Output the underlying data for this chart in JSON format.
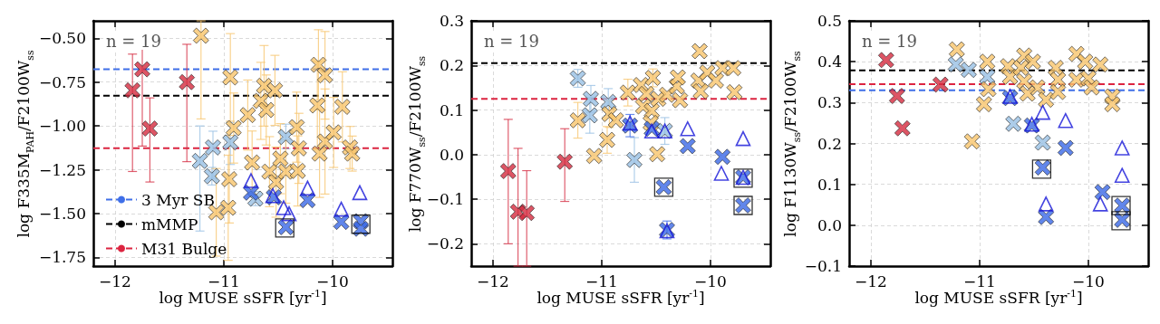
{
  "chart_data": [
    {
      "type": "scatter",
      "xlabel": "log MUSE sSFR [yr$^{-1}$]",
      "ylabel": "log F335M$_{PAH}$/F2100W$_{ss}$",
      "xlim": [
        -12.2,
        -9.45
      ],
      "xticks": [
        {
          "value": -12,
          "label": "−12"
        },
        {
          "value": -11,
          "label": "−11"
        },
        {
          "value": -10,
          "label": "−10"
        }
      ],
      "ylim": [
        -1.8,
        -0.4
      ],
      "yticks": [
        {
          "value": -1.75,
          "label": "−1.75"
        },
        {
          "value": -1.5,
          "label": "−1.50"
        },
        {
          "value": -1.25,
          "label": "−1.25"
        },
        {
          "value": -1,
          "label": "−1.00"
        },
        {
          "value": -0.75,
          "label": "−0.75"
        },
        {
          "value": -0.5,
          "label": "−0.50"
        }
      ],
      "grid": true,
      "legend": "bottom left",
      "annotations": [
        "n = 19"
      ],
      "ref_lines": [
        {
          "axis": "y",
          "value": -0.677,
          "label": "3 Myr SB",
          "color": "#3f6fe8",
          "line_style": "dashed"
        },
        {
          "axis": "y",
          "value": -0.828,
          "label": "mMMP",
          "color": "#000000",
          "line_style": "dashed"
        },
        {
          "axis": "y",
          "value": -1.127,
          "label": "M31 Bulge",
          "color": "#dc2440",
          "line_style": "dashed"
        }
      ],
      "series": [
        {
          "marker": "cross",
          "color": "#d42a3f",
          "x": [
            -11.84,
            -11.75,
            -11.68,
            -11.34
          ],
          "values": [
            -0.797,
            -0.677,
            -1.015,
            -0.75
          ],
          "errors": [
            [
              -1.26,
              -0.59
            ],
            [
              -1.115,
              -0.465
            ],
            [
              -1.32,
              -0.84
            ],
            [
              -1.204,
              -0.534
            ]
          ]
        },
        {
          "marker": "cross",
          "color": "#97bfe3",
          "x": [
            -11.22,
            -11.1,
            -11.11,
            -10.94,
            -10.43,
            -10.71
          ],
          "values": [
            -1.2,
            -1.123,
            -1.287,
            -1.094,
            -1.063,
            -1.415
          ],
          "errors": [
            [
              -1.6,
              -1.0
            ],
            [
              -1.3,
              -1.03
            ],
            0.05,
            [
              -1.22,
              -0.98
            ],
            [
              -1.13,
              -0.99
            ],
            0.04
          ]
        },
        {
          "marker": "cross",
          "color": "#f7c46c",
          "x": [
            -11.21,
            -10.94,
            -10.91,
            -10.78,
            -10.63,
            -10.53,
            -10.66,
            -10.61,
            -10.74,
            -10.95,
            -11.07,
            -10.96,
            -10.58,
            -10.52,
            -10.48,
            -10.43,
            -10.33,
            -10.31,
            -10.32,
            -10.13,
            -10.07,
            -10.14,
            -10.12,
            -10.07,
            -9.99,
            -9.91,
            -9.84,
            -9.82
          ],
          "values": [
            -0.485,
            -0.723,
            -1.012,
            -0.938,
            -0.771,
            -0.797,
            -0.857,
            -0.909,
            -1.209,
            -1.304,
            -1.493,
            -1.467,
            -1.261,
            -1.321,
            -1.187,
            -1.261,
            -1.007,
            -1.128,
            -1.257,
            -0.651,
            -0.711,
            -0.883,
            -1.158,
            -1.089,
            -1.037,
            -0.891,
            -1.123,
            -1.158
          ],
          "errors": [
            [
              -0.96,
              -0.4
            ],
            0.25,
            0.2,
            0.2,
            0.23,
            0.2,
            0.22,
            0.2,
            0.18,
            0.25,
            0.25,
            0.3,
            0.2,
            0.2,
            0.2,
            0.18,
            0.2,
            0.2,
            0.2,
            0.2,
            0.25,
            0.25,
            0.25,
            0.3,
            0.2,
            0.2,
            0.12,
            0.1
          ]
        },
        {
          "marker": "cross",
          "color": "#3a68e6",
          "x": [
            -10.75,
            -10.54,
            -10.43,
            -10.23,
            -9.92,
            -9.74,
            -9.74
          ],
          "values": [
            -1.381,
            -1.407,
            -1.578,
            -1.424,
            -1.548,
            -1.544,
            -1.587
          ]
        },
        {
          "marker": "triangle",
          "color": "#1414d8",
          "x": [
            -10.75,
            -10.55,
            -10.45,
            -10.4,
            -10.23,
            -9.92,
            -9.75
          ],
          "values": [
            -1.312,
            -1.398,
            -1.467,
            -1.501,
            -1.355,
            -1.475,
            -1.381
          ]
        },
        {
          "marker": "square",
          "color": "#000000",
          "x": [
            -10.44,
            -9.74
          ],
          "values": [
            -1.582,
            -1.561
          ]
        }
      ]
    },
    {
      "type": "scatter",
      "xlabel": "log MUSE sSFR [yr$^{-1}$]",
      "ylabel": "log F770W$_{ss}$/F2100W$_{ss}$",
      "xlim": [
        -12.2,
        -9.45
      ],
      "xticks": [
        {
          "value": -12,
          "label": "−12"
        },
        {
          "value": -11,
          "label": "−11"
        },
        {
          "value": -10,
          "label": "−10"
        }
      ],
      "ylim": [
        -0.25,
        0.3
      ],
      "yticks": [
        {
          "value": -0.2,
          "label": "−0.2"
        },
        {
          "value": -0.1,
          "label": "−0.1"
        },
        {
          "value": 0,
          "label": "0.0"
        },
        {
          "value": 0.1,
          "label": "0.1"
        },
        {
          "value": 0.2,
          "label": "0.2"
        },
        {
          "value": 0.3,
          "label": "0.3"
        }
      ],
      "grid": true,
      "annotations": [
        "n = 19"
      ],
      "ref_lines": [
        {
          "axis": "y",
          "value": 0.205,
          "color": "#000000",
          "line_style": "dashed"
        },
        {
          "axis": "y",
          "value": 0.125,
          "color": "#dc2440",
          "line_style": "dashed"
        }
      ],
      "series": [
        {
          "marker": "cross",
          "color": "#d42a3f",
          "x": [
            -11.86,
            -11.77,
            -11.69,
            -11.34
          ],
          "values": [
            -0.037,
            -0.128,
            -0.131,
            -0.016
          ],
          "errors": [
            [
              -0.2,
              0.079
            ],
            [
              -0.25,
              0.014
            ],
            [
              -0.25,
              -0.036
            ],
            [
              -0.105,
              0.058
            ]
          ]
        },
        {
          "marker": "cross",
          "color": "#97bfe3",
          "x": [
            -11.22,
            -11.1,
            -11.11,
            -10.94,
            -10.7,
            -10.42
          ],
          "values": [
            0.171,
            0.125,
            0.088,
            0.118,
            -0.012,
            0.053
          ],
          "errors": [
            0.02,
            0.03,
            0.04,
            0.03,
            0.05,
            0.03
          ]
        },
        {
          "marker": "cross",
          "color": "#f7c46c",
          "x": [
            -11.22,
            -11.07,
            -10.95,
            -10.93,
            -10.87,
            -10.76,
            -10.64,
            -10.59,
            -10.53,
            -10.62,
            -10.54,
            -10.48,
            -10.4,
            -10.31,
            -10.3,
            -10.28,
            -10.49,
            -10.55,
            -10.1,
            -10.11,
            -10.09,
            -10.03,
            -9.95,
            -9.89,
            -9.79,
            -9.78
          ],
          "values": [
            0.077,
            -0.003,
            0.033,
            0.091,
            0.077,
            0.139,
            0.156,
            0.136,
            0.172,
            0.108,
            0.098,
            0.125,
            0.134,
            0.153,
            0.173,
            0.122,
            0.001,
            0.071,
            0.232,
            0.166,
            0.142,
            0.184,
            0.166,
            0.194,
            0.194,
            0.14
          ],
          "errors": [
            0.04,
            null,
            0.03,
            0.03,
            null,
            0.03,
            null,
            null,
            0.02,
            null,
            null,
            null,
            null,
            null,
            null,
            null,
            null,
            null,
            null,
            null,
            null,
            null,
            null,
            null,
            null,
            null
          ]
        },
        {
          "marker": "cross",
          "color": "#3a68e6",
          "x": [
            -10.74,
            -10.54,
            -10.43,
            -10.4,
            -10.21,
            -9.89,
            -9.7,
            -9.7
          ],
          "values": [
            0.065,
            0.058,
            -0.073,
            -0.169,
            0.019,
            -0.005,
            -0.051,
            -0.114
          ],
          "errors": [
            0.025,
            null,
            null,
            0.02,
            null,
            null,
            null,
            null
          ]
        },
        {
          "marker": "triangle",
          "color": "#1414d8",
          "x": [
            -10.74,
            -10.54,
            -10.42,
            -10.4,
            -10.21,
            -9.9,
            -9.7,
            -9.7
          ],
          "values": [
            0.071,
            0.053,
            0.053,
            -0.171,
            0.058,
            -0.042,
            0.036,
            -0.051
          ]
        },
        {
          "marker": "square",
          "color": "#000000",
          "x": [
            -10.43,
            -9.7,
            -9.7
          ],
          "values": [
            -0.073,
            -0.053,
            -0.114
          ]
        }
      ]
    },
    {
      "type": "scatter",
      "xlabel": "log MUSE sSFR [yr$^{-1}$]",
      "ylabel": "log F1130W$_{ss}$/F2100W$_{ss}$",
      "xlim": [
        -12.2,
        -9.45
      ],
      "xticks": [
        {
          "value": -12,
          "label": "−12"
        },
        {
          "value": -11,
          "label": "−11"
        },
        {
          "value": -10,
          "label": "−10"
        }
      ],
      "ylim": [
        -0.1,
        0.5
      ],
      "yticks": [
        {
          "value": -0.1,
          "label": "−0.1"
        },
        {
          "value": 0,
          "label": "0.0"
        },
        {
          "value": 0.1,
          "label": "0.1"
        },
        {
          "value": 0.2,
          "label": "0.2"
        },
        {
          "value": 0.3,
          "label": "0.3"
        },
        {
          "value": 0.4,
          "label": "0.4"
        },
        {
          "value": 0.5,
          "label": "0.5"
        }
      ],
      "grid": true,
      "annotations": [
        "n = 19"
      ],
      "ref_lines": [
        {
          "axis": "y",
          "value": 0.33,
          "color": "#3f6fe8",
          "line_style": "dashed"
        },
        {
          "axis": "y",
          "value": 0.379,
          "color": "#000000",
          "line_style": "dashed"
        },
        {
          "axis": "y",
          "value": 0.345,
          "color": "#dc2440",
          "line_style": "dashed"
        }
      ],
      "series": [
        {
          "marker": "cross",
          "color": "#d42a3f",
          "x": [
            -11.86,
            -11.76,
            -11.71,
            -11.36
          ],
          "values": [
            0.404,
            0.316,
            0.237,
            0.344
          ]
        },
        {
          "marker": "cross",
          "color": "#97bfe3",
          "x": [
            -11.22,
            -11.1,
            -10.93,
            -10.69,
            -10.42
          ],
          "values": [
            0.393,
            0.38,
            0.363,
            0.248,
            0.202
          ]
        },
        {
          "marker": "cross",
          "color": "#f7c46c",
          "x": [
            -11.21,
            -11.07,
            -10.93,
            -10.92,
            -10.96,
            -10.74,
            -10.72,
            -10.59,
            -10.62,
            -10.59,
            -10.51,
            -10.47,
            -10.56,
            -10.39,
            -10.3,
            -10.28,
            -10.28,
            -10.11,
            -10.08,
            -10.03,
            -10.11,
            -10.0,
            -9.97,
            -9.89,
            -9.78,
            -9.78
          ],
          "values": [
            0.43,
            0.205,
            0.4,
            0.333,
            0.296,
            0.389,
            0.363,
            0.415,
            0.385,
            0.352,
            0.4,
            0.337,
            0.322,
            0.307,
            0.385,
            0.356,
            0.326,
            0.419,
            null,
            0.4,
            0.356,
            0.359,
            0.337,
            0.393,
            0.315,
            0.296
          ]
        },
        {
          "marker": "cross",
          "color": "#3a68e6",
          "x": [
            -10.72,
            -10.52,
            -10.42,
            -10.39,
            -10.21,
            -9.87,
            -9.69,
            -9.69
          ],
          "values": [
            0.311,
            0.244,
            0.141,
            0.02,
            0.189,
            0.081,
            0.048,
            0.013
          ]
        },
        {
          "marker": "triangle",
          "color": "#1414d8",
          "x": [
            -10.72,
            -10.52,
            -10.42,
            -10.39,
            -10.21,
            -9.89,
            -9.69,
            -9.69
          ],
          "values": [
            0.315,
            0.247,
            0.276,
            0.052,
            0.256,
            0.052,
            0.189,
            0.122
          ]
        },
        {
          "marker": "square",
          "color": "#000000",
          "x": [
            -10.43,
            -9.7,
            -9.7
          ],
          "values": [
            0.137,
            0.048,
            0.011
          ]
        }
      ]
    }
  ]
}
